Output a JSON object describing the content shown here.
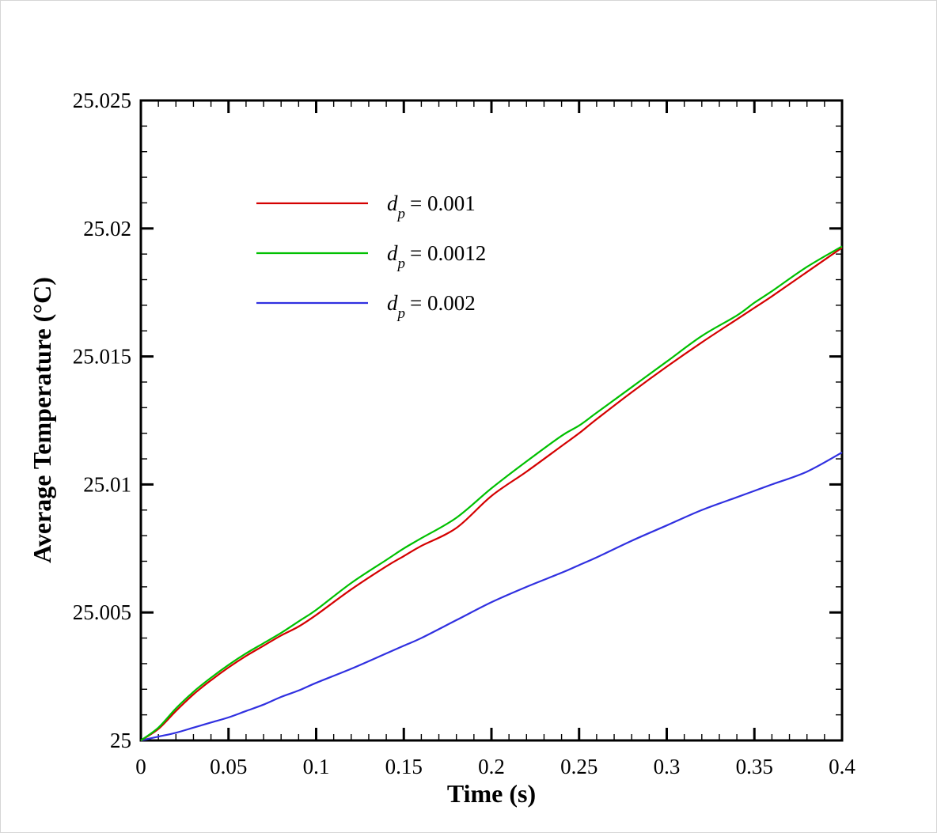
{
  "chart_data": {
    "type": "line",
    "title": "",
    "xlabel": "Time (s)",
    "ylabel": "Average Temperature (°C)",
    "xlim": [
      0,
      0.4
    ],
    "ylim": [
      25,
      25.025
    ],
    "xticks": [
      0,
      0.05,
      0.1,
      0.15,
      0.2,
      0.25,
      0.3,
      0.35,
      0.4
    ],
    "xtick_labels": [
      "0",
      "0.05",
      "0.1",
      "0.15",
      "0.2",
      "0.25",
      "0.3",
      "0.35",
      "0.4"
    ],
    "yticks": [
      25,
      25.005,
      25.01,
      25.015,
      25.02,
      25.025
    ],
    "ytick_labels": [
      "25",
      "25.005",
      "25.01",
      "25.015",
      "25.02",
      "25.025"
    ],
    "grid": false,
    "legend_position": "top-left",
    "x": [
      0,
      0.01,
      0.02,
      0.03,
      0.04,
      0.05,
      0.06,
      0.07,
      0.08,
      0.09,
      0.1,
      0.12,
      0.14,
      0.15,
      0.16,
      0.18,
      0.2,
      0.22,
      0.24,
      0.25,
      0.26,
      0.28,
      0.3,
      0.32,
      0.34,
      0.35,
      0.36,
      0.38,
      0.4
    ],
    "series": [
      {
        "name": "d_p = 0.001",
        "legend_symbol": "d",
        "legend_subscript": "p",
        "legend_value": "= 0.001",
        "color": "#d40000",
        "values": [
          25.0,
          25.00045,
          25.00115,
          25.0018,
          25.00235,
          25.00285,
          25.0033,
          25.0037,
          25.0041,
          25.00445,
          25.0049,
          25.0059,
          25.0068,
          25.0072,
          25.0076,
          25.0083,
          25.00955,
          25.0105,
          25.0115,
          25.012,
          25.01255,
          25.0136,
          25.0146,
          25.01555,
          25.01645,
          25.0169,
          25.01735,
          25.0183,
          25.01925
        ]
      },
      {
        "name": "d_p = 0.0012",
        "legend_symbol": "d",
        "legend_subscript": "p",
        "legend_value": "= 0.0012",
        "color": "#00c000",
        "values": [
          25.0,
          25.0005,
          25.00125,
          25.0019,
          25.00245,
          25.00295,
          25.0034,
          25.0038,
          25.0042,
          25.00465,
          25.0051,
          25.00615,
          25.00705,
          25.0075,
          25.0079,
          25.0087,
          25.00985,
          25.0109,
          25.0119,
          25.0123,
          25.0128,
          25.0138,
          25.0148,
          25.0158,
          25.0166,
          25.0171,
          25.01755,
          25.0185,
          25.0193
        ]
      },
      {
        "name": "d_p = 0.002",
        "legend_symbol": "d",
        "legend_subscript": "p",
        "legend_value": "= 0.002",
        "color": "#3030e0",
        "values": [
          25.0,
          25.00015,
          25.0003,
          25.0005,
          25.0007,
          25.0009,
          25.00115,
          25.0014,
          25.0017,
          25.00195,
          25.00225,
          25.0028,
          25.0034,
          25.0037,
          25.004,
          25.0047,
          25.0054,
          25.006,
          25.00655,
          25.00685,
          25.00715,
          25.0078,
          25.0084,
          25.009,
          25.0095,
          25.00975,
          25.01,
          25.0105,
          25.01125
        ]
      }
    ]
  }
}
